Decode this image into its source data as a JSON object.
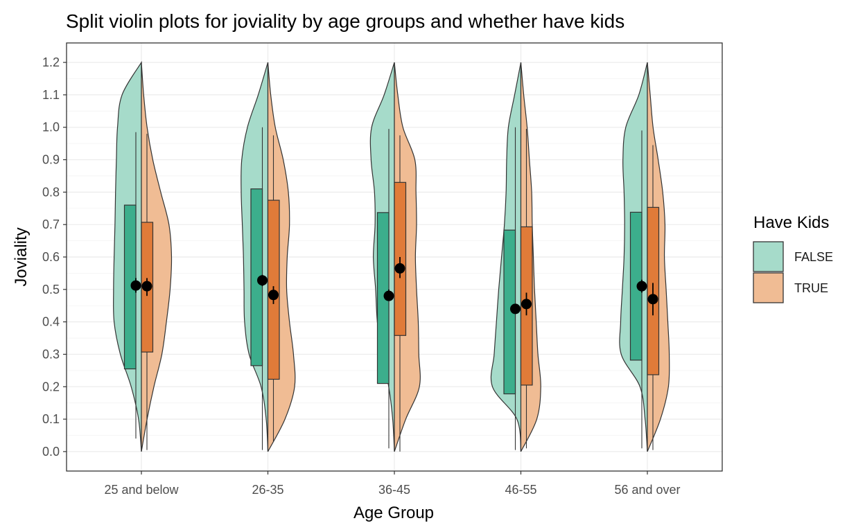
{
  "chart_data": {
    "type": "violin",
    "title": "Split violin plots for joviality by age groups and whether have kids",
    "xlabel": "Age Group",
    "ylabel": "Joviality",
    "ylim": [
      -0.06,
      1.26
    ],
    "yticks": [
      "0.0",
      "0.1",
      "0.2",
      "0.3",
      "0.4",
      "0.5",
      "0.6",
      "0.7",
      "0.8",
      "0.9",
      "1.0",
      "1.1",
      "1.2"
    ],
    "categories": [
      "25 and below",
      "26-35",
      "36-45",
      "46-55",
      "56 and over"
    ],
    "grid": true,
    "legend": {
      "title": "Have Kids",
      "placement": "right",
      "items": [
        {
          "label": "FALSE",
          "fill": "#a6dbca",
          "box": "#3cae8c"
        },
        {
          "label": "TRUE",
          "fill": "#f0bc94",
          "box": "#e07b39"
        }
      ]
    },
    "series": [
      {
        "name": "FALSE",
        "violin_widths": [
          [
            0.0,
            0.05,
            0.18,
            0.37,
            0.48,
            0.49,
            0.48,
            0.465,
            0.455,
            0.44,
            0.42,
            0.34,
            0.0
          ],
          [
            0.0,
            0.03,
            0.12,
            0.33,
            0.41,
            0.42,
            0.43,
            0.45,
            0.47,
            0.46,
            0.36,
            0.17,
            0.0
          ],
          [
            0.0,
            0.03,
            0.1,
            0.22,
            0.3,
            0.33,
            0.37,
            0.34,
            0.35,
            0.41,
            0.4,
            0.18,
            0.0
          ],
          [
            0.0,
            0.07,
            0.5,
            0.47,
            0.43,
            0.39,
            0.34,
            0.29,
            0.26,
            0.25,
            0.22,
            0.11,
            0.0
          ],
          [
            0.0,
            0.04,
            0.13,
            0.46,
            0.47,
            0.44,
            0.41,
            0.4,
            0.41,
            0.43,
            0.38,
            0.15,
            0.0
          ]
        ],
        "box": [
          {
            "q1": 0.255,
            "q3": 0.76,
            "lo": 0.04,
            "hi": 0.985,
            "mean": 0.512,
            "ci": [
              0.49,
              0.535
            ]
          },
          {
            "q1": 0.265,
            "q3": 0.81,
            "lo": 0.005,
            "hi": 1.0,
            "mean": 0.528,
            "ci": [
              0.51,
              0.545
            ]
          },
          {
            "q1": 0.21,
            "q3": 0.737,
            "lo": 0.01,
            "hi": 0.995,
            "mean": 0.48,
            "ci": [
              0.465,
              0.5
            ]
          },
          {
            "q1": 0.178,
            "q3": 0.683,
            "lo": 0.005,
            "hi": 1.0,
            "mean": 0.44,
            "ci": [
              0.425,
              0.455
            ]
          },
          {
            "q1": 0.282,
            "q3": 0.738,
            "lo": 0.01,
            "hi": 0.99,
            "mean": 0.51,
            "ci": [
              0.49,
              0.53
            ]
          }
        ]
      },
      {
        "name": "TRUE",
        "violin_widths": [
          [
            0.0,
            0.1,
            0.22,
            0.36,
            0.44,
            0.505,
            0.53,
            0.485,
            0.34,
            0.2,
            0.1,
            0.04,
            0.0
          ],
          [
            0.0,
            0.3,
            0.47,
            0.45,
            0.38,
            0.33,
            0.34,
            0.38,
            0.36,
            0.27,
            0.13,
            0.05,
            0.0
          ],
          [
            0.0,
            0.2,
            0.44,
            0.43,
            0.42,
            0.39,
            0.37,
            0.39,
            0.38,
            0.36,
            0.15,
            0.06,
            0.0
          ],
          [
            0.0,
            0.28,
            0.35,
            0.3,
            0.27,
            0.24,
            0.22,
            0.2,
            0.19,
            0.15,
            0.11,
            0.05,
            0.0
          ],
          [
            0.0,
            0.23,
            0.37,
            0.385,
            0.36,
            0.33,
            0.3,
            0.31,
            0.27,
            0.19,
            0.1,
            0.05,
            0.0
          ]
        ],
        "box": [
          {
            "q1": 0.307,
            "q3": 0.707,
            "lo": 0.005,
            "hi": 0.98,
            "mean": 0.51,
            "ci": [
              0.48,
              0.535
            ]
          },
          {
            "q1": 0.223,
            "q3": 0.775,
            "lo": 0.03,
            "hi": 0.975,
            "mean": 0.483,
            "ci": [
              0.455,
              0.51
            ]
          },
          {
            "q1": 0.358,
            "q3": 0.83,
            "lo": 0.0,
            "hi": 0.975,
            "mean": 0.565,
            "ci": [
              0.535,
              0.6
            ]
          },
          {
            "q1": 0.205,
            "q3": 0.693,
            "lo": 0.01,
            "hi": 0.995,
            "mean": 0.455,
            "ci": [
              0.42,
              0.49
            ]
          },
          {
            "q1": 0.237,
            "q3": 0.753,
            "lo": 0.005,
            "hi": 0.945,
            "mean": 0.47,
            "ci": [
              0.42,
              0.52
            ]
          }
        ]
      }
    ],
    "violin_y": [
      0.0,
      0.1,
      0.2,
      0.3,
      0.4,
      0.5,
      0.6,
      0.7,
      0.8,
      0.9,
      1.0,
      1.1,
      1.2
    ]
  }
}
